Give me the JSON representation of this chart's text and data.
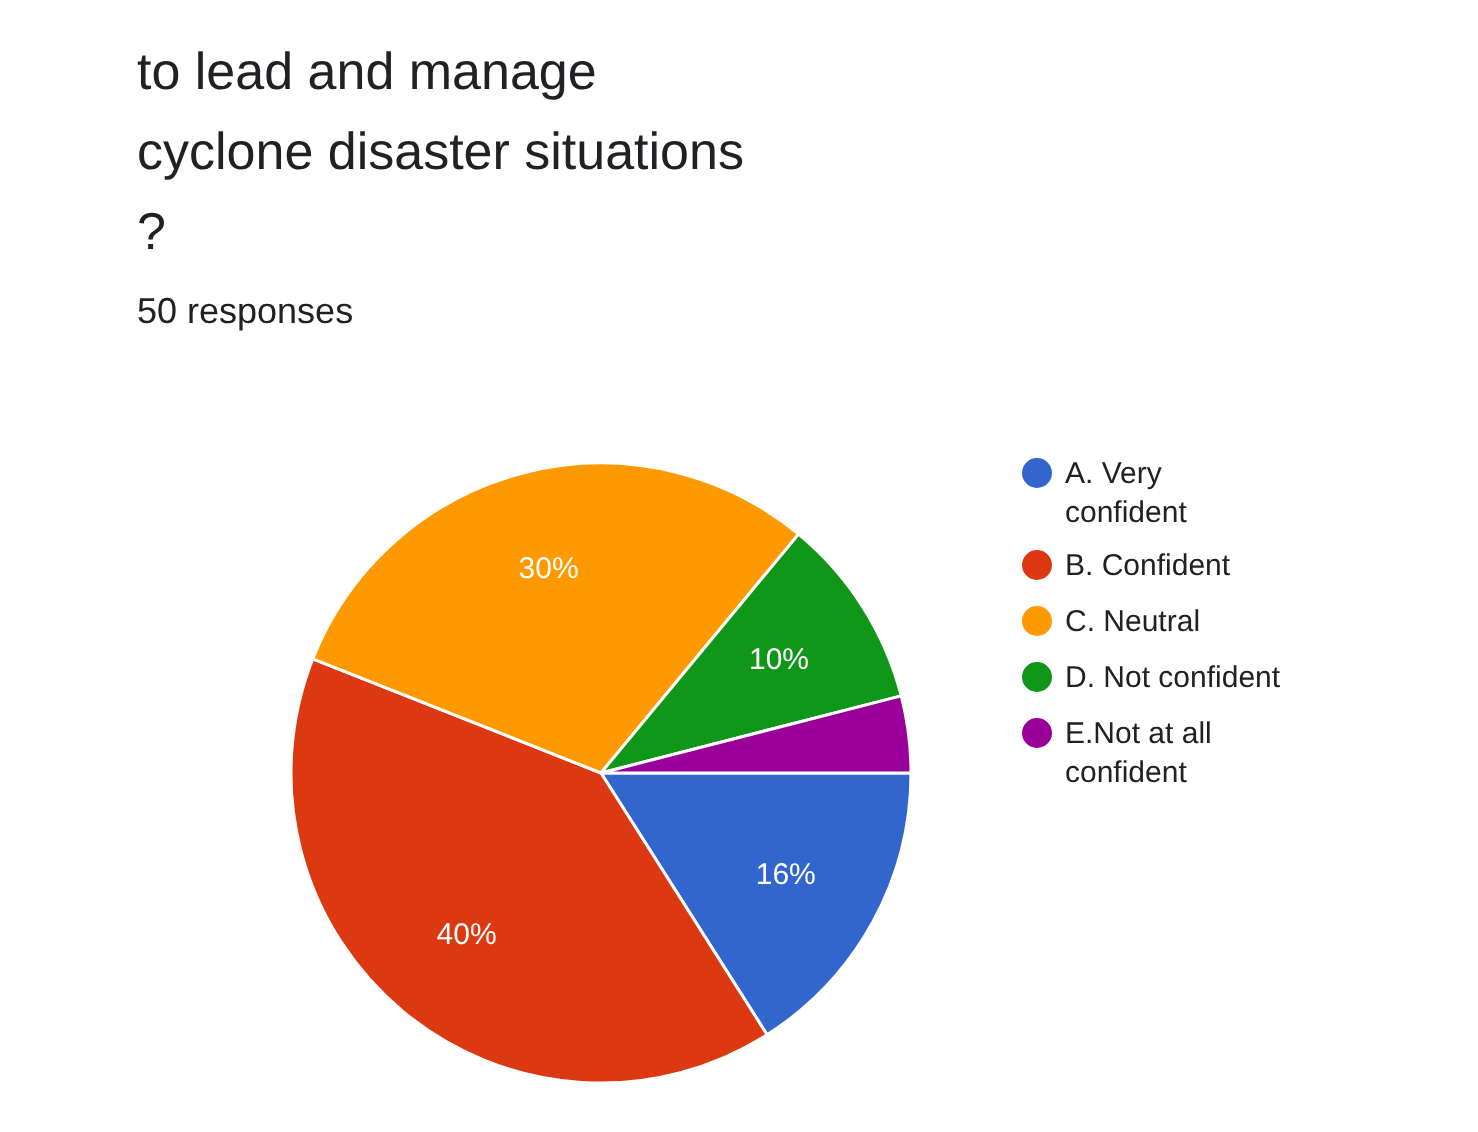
{
  "chart_data": {
    "type": "pie",
    "title": "to lead and manage\ncyclone disaster situations\n?",
    "subtitle": "50 responses",
    "categories": [
      "A. Very\nconfident",
      "B. Confident",
      "C. Neutral",
      "D. Not confident",
      "E.Not at all\nconfident"
    ],
    "values": [
      16,
      40,
      30,
      10,
      4
    ],
    "colors": [
      "#3366cc",
      "#dc3912",
      "#ff9900",
      "#109618",
      "#990099"
    ],
    "value_labels": [
      "16%",
      "40%",
      "30%",
      "10%",
      null
    ],
    "legend": "right"
  }
}
